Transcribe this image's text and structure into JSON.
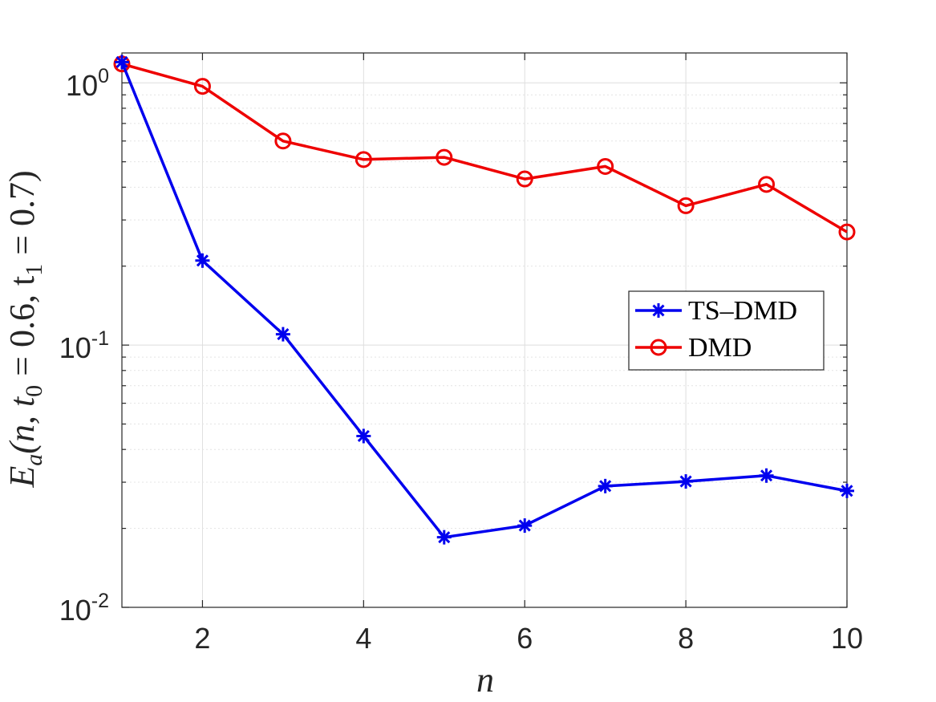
{
  "chart_data": {
    "type": "line",
    "title": "",
    "xlabel": "n",
    "ylabel": "E",
    "ylabel_sub": "a",
    "ylabel_args": "(n, t",
    "ylabel_t0_sub": "0",
    "ylabel_mid": " = 0.6, t",
    "ylabel_t1_sub": "1",
    "ylabel_end": " = 0.7)",
    "xlim": [
      1,
      10
    ],
    "ylim": [
      0.01,
      1.3
    ],
    "yscale": "log",
    "grid": true,
    "legend_position": "center-right",
    "x_ticks": [
      2,
      4,
      6,
      8,
      10
    ],
    "x_tick_labels": [
      "2",
      "4",
      "6",
      "8",
      "10"
    ],
    "y_ticks": [
      0.01,
      0.1,
      1
    ],
    "y_tick_labels": [
      {
        "base": "10",
        "exp": "-2"
      },
      {
        "base": "10",
        "exp": "-1"
      },
      {
        "base": "10",
        "exp": "0"
      }
    ],
    "x": [
      1,
      2,
      3,
      4,
      5,
      6,
      7,
      8,
      9,
      10
    ],
    "series": [
      {
        "name": "TS–DMD",
        "color": "#0000ee",
        "marker": "asterisk",
        "values": [
          1.2,
          0.21,
          0.11,
          0.045,
          0.0185,
          0.0205,
          0.029,
          0.0302,
          0.0318,
          0.0278
        ]
      },
      {
        "name": "DMD",
        "color": "#ee0000",
        "marker": "circle",
        "values": [
          1.18,
          0.97,
          0.6,
          0.51,
          0.52,
          0.43,
          0.48,
          0.34,
          0.41,
          0.27
        ]
      }
    ]
  }
}
